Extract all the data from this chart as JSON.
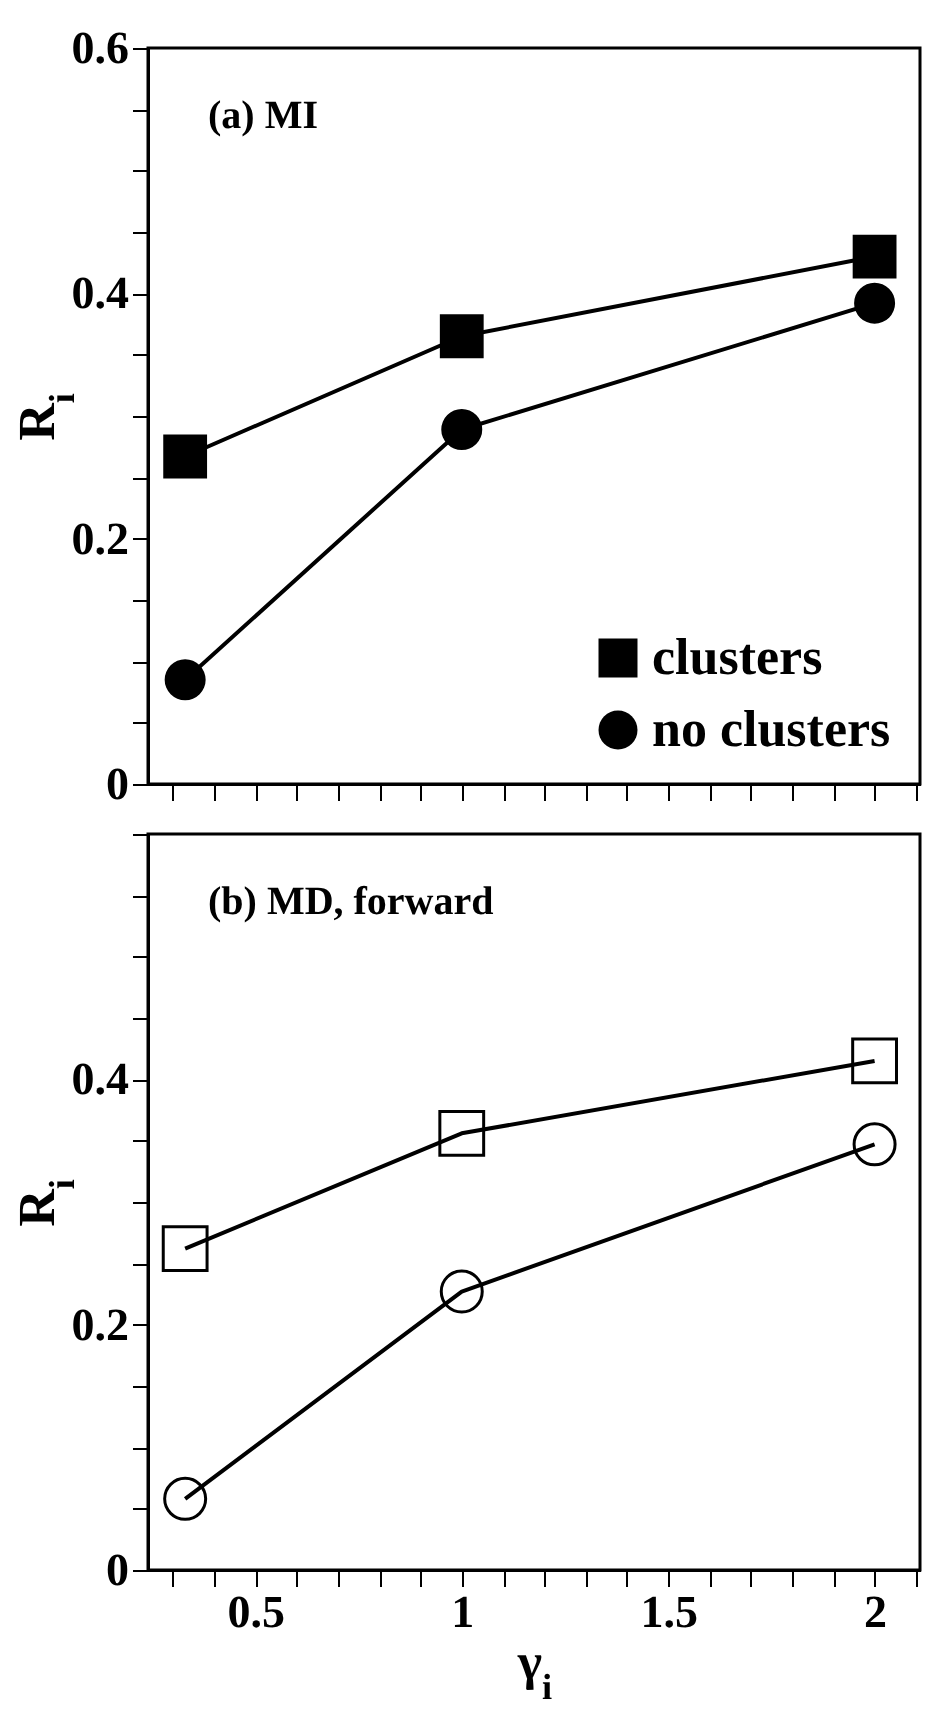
{
  "chart_data": [
    {
      "type": "line",
      "annotations": [
        "(a) MI"
      ],
      "ylabel": "R$_{i}$",
      "x": [
        0.33,
        1,
        2
      ],
      "xlim": [
        0.24,
        2.11
      ],
      "ylim": [
        0,
        0.6
      ],
      "xticks": [
        {
          "value": 0.3,
          "label": null
        },
        {
          "value": 0.4,
          "label": null
        },
        0.5,
        {
          "value": 0.6,
          "label": null
        },
        {
          "value": 0.7,
          "label": null
        },
        {
          "value": 0.8,
          "label": null
        },
        {
          "value": 0.9,
          "label": null
        },
        1,
        {
          "value": 1.1,
          "label": null
        },
        {
          "value": 1.2,
          "label": null
        },
        {
          "value": 1.3,
          "label": null
        },
        {
          "value": 1.4,
          "label": null
        },
        1.5,
        {
          "value": 1.6,
          "label": null
        },
        {
          "value": 1.7,
          "label": null
        },
        {
          "value": 1.8,
          "label": null
        },
        {
          "value": 1.9,
          "label": null
        },
        2,
        {
          "value": 2.1,
          "label": null
        }
      ],
      "yticks": [
        0,
        {
          "value": 0.05,
          "label": null
        },
        {
          "value": 0.1,
          "label": null
        },
        {
          "value": 0.15,
          "label": null
        },
        0.2,
        {
          "value": 0.25,
          "label": null
        },
        {
          "value": 0.3,
          "label": null
        },
        {
          "value": 0.35,
          "label": null
        },
        0.4,
        {
          "value": 0.45,
          "label": null
        },
        {
          "value": 0.5,
          "label": null
        },
        {
          "value": 0.55,
          "label": null
        },
        0.6
      ],
      "tick_labels": "y",
      "legend": "bottom right",
      "line_style": "solid",
      "series": [
        {
          "name": "clusters",
          "color": "#000000",
          "marker": "square",
          "values": [
            0.267,
            0.365,
            0.43
          ]
        },
        {
          "name": "no clusters",
          "color": "#000000",
          "marker": "circle",
          "values": [
            0.085,
            0.289,
            0.392
          ]
        }
      ]
    },
    {
      "type": "line",
      "annotations": [
        "(b) MD, forward"
      ],
      "ylabel": "R$_{i}$",
      "xlabel": "γ$_{i}$",
      "x": [
        0.33,
        1,
        2
      ],
      "xlim": [
        0.24,
        2.11
      ],
      "ylim": [
        0,
        0.6
      ],
      "xticks": [
        {
          "value": 0.3,
          "label": null
        },
        {
          "value": 0.4,
          "label": null
        },
        0.5,
        {
          "value": 0.6,
          "label": null
        },
        {
          "value": 0.7,
          "label": null
        },
        {
          "value": 0.8,
          "label": null
        },
        {
          "value": 0.9,
          "label": null
        },
        1,
        {
          "value": 1.1,
          "label": null
        },
        {
          "value": 1.2,
          "label": null
        },
        {
          "value": 1.3,
          "label": null
        },
        {
          "value": 1.4,
          "label": null
        },
        1.5,
        {
          "value": 1.6,
          "label": null
        },
        {
          "value": 1.7,
          "label": null
        },
        {
          "value": 1.8,
          "label": null
        },
        {
          "value": 1.9,
          "label": null
        },
        2,
        {
          "value": 2.1,
          "label": null
        }
      ],
      "yticks": [
        0,
        {
          "value": 0.05,
          "label": null
        },
        {
          "value": 0.1,
          "label": null
        },
        {
          "value": 0.15,
          "label": null
        },
        0.2,
        {
          "value": 0.25,
          "label": null
        },
        {
          "value": 0.3,
          "label": null
        },
        {
          "value": 0.35,
          "label": null
        },
        0.4,
        {
          "value": 0.45,
          "label": null
        },
        {
          "value": 0.5,
          "label": null
        },
        {
          "value": 0.55,
          "label": null
        },
        {
          "value": 0.6,
          "label": null
        }
      ],
      "line_style": "solid",
      "series": [
        {
          "color": "#000000",
          "marker": "square",
          "values": [
            0.262,
            0.356,
            0.415
          ]
        },
        {
          "color": "#000000",
          "marker": "circle",
          "values": [
            0.058,
            0.227,
            0.347
          ]
        }
      ]
    }
  ]
}
